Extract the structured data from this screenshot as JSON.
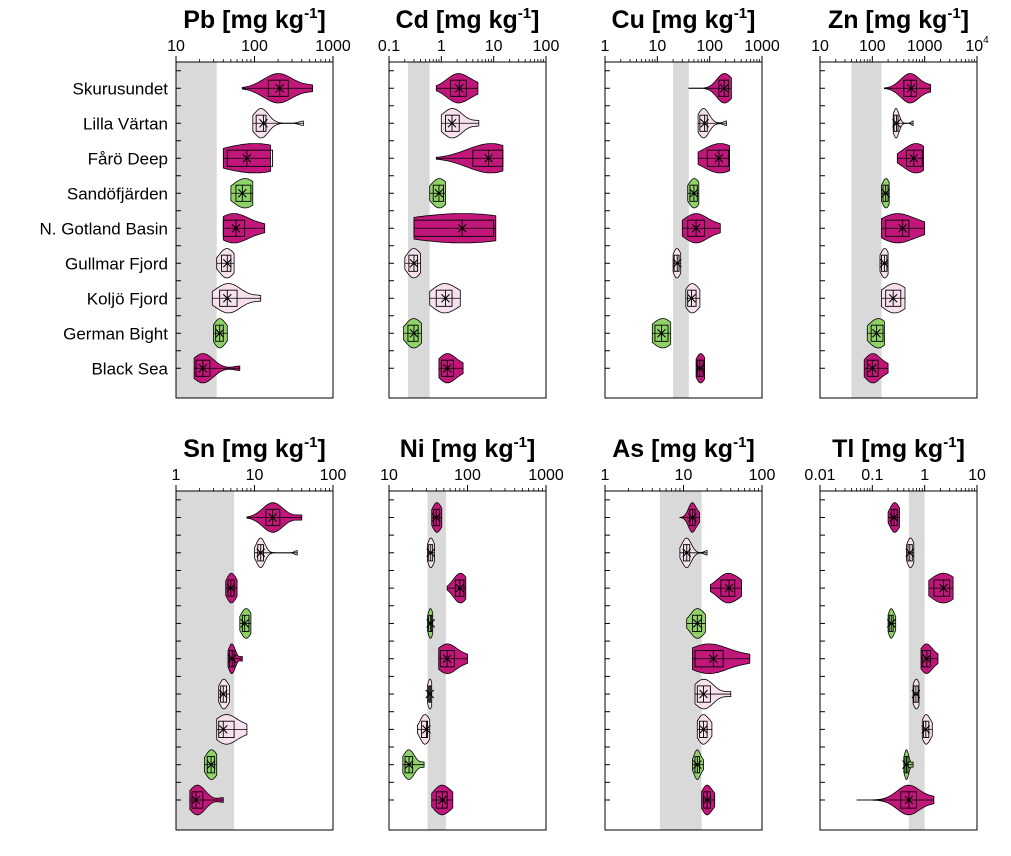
{
  "chart_data": {
    "type": "violin",
    "categories": [
      "Skurusundet",
      "Lilla Värtan",
      "Fårö Deep",
      "Sandöfjärden",
      "N. Gotland Basin",
      "Gullmar Fjord",
      "Koljö Fjord",
      "German Bight",
      "Black Sea"
    ],
    "colors": {
      "dark": "#c1177a",
      "light": "#f8e1ee",
      "green": "#90d16a",
      "background_band": "#d9d9d9",
      "outline": "#000000"
    },
    "groups": [
      "dark",
      "light",
      "dark",
      "green",
      "dark",
      "light",
      "light",
      "green",
      "dark"
    ],
    "panels": [
      {
        "id": "pb",
        "element": "Pb",
        "unit": "[mg kg",
        "unit_exp": "-1",
        "unit_close": "]",
        "scale": "log",
        "xlim": [
          10,
          1000
        ],
        "ticks": [
          {
            "label": "10"
          },
          {
            "label": "100"
          },
          {
            "label": "1000"
          }
        ],
        "tick_values": [
          10,
          100,
          1000
        ],
        "band": [
          10,
          33
        ],
        "violins": [
          [
            70,
            150,
            210,
            270,
            550
          ],
          [
            95,
            105,
            130,
            140,
            420
          ],
          [
            40,
            45,
            80,
            170,
            160
          ],
          [
            50,
            58,
            70,
            90,
            95
          ],
          [
            40,
            40,
            58,
            75,
            135
          ],
          [
            33,
            38,
            45,
            50,
            55
          ],
          [
            29,
            36,
            45,
            60,
            120
          ],
          [
            30,
            32,
            36,
            40,
            45
          ],
          [
            17,
            18,
            22,
            27,
            65
          ]
        ]
      },
      {
        "id": "cd",
        "element": "Cd",
        "unit": "[mg kg",
        "unit_exp": "-1",
        "unit_close": "]",
        "scale": "log",
        "xlim": [
          0.1,
          100
        ],
        "ticks": [
          {
            "label": "0.1"
          },
          {
            "label": "1"
          },
          {
            "label": "10"
          },
          {
            "label": "100"
          }
        ],
        "tick_values": [
          0.1,
          1,
          10,
          100
        ],
        "band": [
          0.23,
          0.6
        ],
        "violins": [
          [
            0.8,
            1.5,
            2.2,
            3,
            5
          ],
          [
            1.0,
            1.2,
            1.6,
            2.2,
            5.2
          ],
          [
            0.8,
            4,
            8,
            15,
            15
          ],
          [
            0.6,
            0.7,
            0.9,
            1.1,
            1.2
          ],
          [
            0.3,
            0.3,
            2.5,
            10,
            11
          ],
          [
            0.2,
            0.24,
            0.3,
            0.35,
            0.4
          ],
          [
            0.6,
            0.8,
            1.2,
            1.6,
            2.3
          ],
          [
            0.19,
            0.23,
            0.3,
            0.36,
            0.42
          ],
          [
            0.9,
            1.0,
            1.3,
            1.7,
            2.6
          ]
        ]
      },
      {
        "id": "cu",
        "element": "Cu",
        "unit": "[mg kg",
        "unit_exp": "-1",
        "unit_close": "]",
        "scale": "log",
        "xlim": [
          1,
          1000
        ],
        "ticks": [
          {
            "label": "1"
          },
          {
            "label": "10"
          },
          {
            "label": "100"
          },
          {
            "label": "1000"
          }
        ],
        "tick_values": [
          1,
          10,
          100,
          1000
        ],
        "band": [
          20,
          40
        ],
        "violins": [
          [
            40,
            150,
            190,
            230,
            260
          ],
          [
            60,
            65,
            80,
            90,
            210
          ],
          [
            60,
            90,
            150,
            230,
            240
          ],
          [
            38,
            42,
            50,
            58,
            62
          ],
          [
            30,
            38,
            55,
            80,
            160
          ],
          [
            20,
            21,
            24,
            26,
            28
          ],
          [
            35,
            38,
            45,
            55,
            65
          ],
          [
            8,
            9,
            12,
            16,
            18
          ],
          [
            55,
            58,
            65,
            75,
            80
          ]
        ]
      },
      {
        "id": "zn",
        "element": "Zn",
        "unit": "[mg kg",
        "unit_exp": "-1",
        "unit_close": "]",
        "scale": "log",
        "xlim": [
          10,
          10000
        ],
        "ticks": [
          {
            "label": "10"
          },
          {
            "label": "100"
          },
          {
            "label": "1000"
          },
          {
            "label": "10",
            "sup": "4"
          }
        ],
        "tick_values": [
          10,
          100,
          1000,
          10000
        ],
        "band": [
          40,
          150
        ],
        "violins": [
          [
            170,
            400,
            550,
            700,
            1300
          ],
          [
            250,
            260,
            290,
            310,
            600
          ],
          [
            300,
            450,
            620,
            900,
            950
          ],
          [
            150,
            160,
            180,
            200,
            210
          ],
          [
            150,
            180,
            380,
            500,
            1000
          ],
          [
            140,
            150,
            170,
            190,
            200
          ],
          [
            150,
            180,
            250,
            350,
            420
          ],
          [
            80,
            95,
            120,
            160,
            170
          ],
          [
            70,
            80,
            100,
            130,
            200
          ]
        ]
      },
      {
        "id": "sn",
        "element": "Sn",
        "unit": "[mg kg",
        "unit_exp": "-1",
        "unit_close": "]",
        "scale": "log",
        "xlim": [
          1,
          100
        ],
        "ticks": [
          {
            "label": "1"
          },
          {
            "label": "10"
          },
          {
            "label": "100"
          }
        ],
        "tick_values": [
          1,
          10,
          100
        ],
        "band": [
          1,
          5.5
        ],
        "violins": [
          [
            8,
            14,
            17,
            21,
            40
          ],
          [
            10,
            11,
            12,
            13,
            35
          ],
          [
            4.3,
            4.6,
            5.0,
            5.5,
            6
          ],
          [
            6.5,
            7,
            7.5,
            8.5,
            9
          ],
          [
            4.6,
            4.8,
            5.2,
            5.5,
            7
          ],
          [
            3.5,
            3.7,
            4.0,
            4.4,
            4.8
          ],
          [
            3.3,
            3.5,
            4.0,
            5.5,
            8
          ],
          [
            2.3,
            2.5,
            2.8,
            3.1,
            3.3
          ],
          [
            1.5,
            1.6,
            1.8,
            2.2,
            4
          ]
        ]
      },
      {
        "id": "ni",
        "element": "Ni",
        "unit": "[mg kg",
        "unit_exp": "-1",
        "unit_close": "]",
        "scale": "log",
        "xlim": [
          10,
          1000
        ],
        "ticks": [
          {
            "label": "10"
          },
          {
            "label": "100"
          },
          {
            "label": "1000"
          }
        ],
        "tick_values": [
          10,
          100,
          1000
        ],
        "band": [
          31,
          53
        ],
        "violins": [
          [
            35,
            37,
            40,
            44,
            47
          ],
          [
            31,
            32,
            34,
            36,
            38
          ],
          [
            55,
            70,
            80,
            90,
            95
          ],
          [
            31,
            32,
            34,
            35,
            36
          ],
          [
            43,
            45,
            55,
            68,
            100
          ],
          [
            31,
            32,
            33,
            34,
            35
          ],
          [
            23,
            26,
            30,
            31,
            33
          ],
          [
            15,
            16,
            18,
            20,
            28
          ],
          [
            35,
            40,
            48,
            55,
            65
          ]
        ]
      },
      {
        "id": "as",
        "element": "As",
        "unit": "[mg kg",
        "unit_exp": "-1",
        "unit_close": "]",
        "scale": "log",
        "xlim": [
          1,
          100
        ],
        "ticks": [
          {
            "label": "1"
          },
          {
            "label": "10"
          },
          {
            "label": "100"
          }
        ],
        "tick_values": [
          1,
          10,
          100
        ],
        "band": [
          5,
          17
        ],
        "violins": [
          [
            9,
            12,
            13,
            14,
            16
          ],
          [
            9,
            10,
            11,
            12,
            20
          ],
          [
            22,
            30,
            38,
            45,
            55
          ],
          [
            11,
            13,
            15,
            17,
            19
          ],
          [
            13,
            14,
            24,
            32,
            70
          ],
          [
            14,
            15,
            18,
            22,
            40
          ],
          [
            15,
            16,
            18,
            20,
            23
          ],
          [
            13,
            14,
            15,
            16,
            18
          ],
          [
            17,
            18,
            20,
            22,
            25
          ]
        ]
      },
      {
        "id": "tl",
        "element": "Tl",
        "unit": "[mg kg",
        "unit_exp": "-1",
        "unit_close": "]",
        "scale": "log",
        "xlim": [
          0.01,
          10
        ],
        "ticks": [
          {
            "label": "0.01"
          },
          {
            "label": "0.1"
          },
          {
            "label": "1"
          },
          {
            "label": "10"
          }
        ],
        "tick_values": [
          0.01,
          0.1,
          1,
          10
        ],
        "band": [
          0.5,
          1.0
        ],
        "violins": [
          [
            0.2,
            0.23,
            0.26,
            0.3,
            0.33
          ],
          [
            0.45,
            0.48,
            0.52,
            0.58,
            0.62
          ],
          [
            1.2,
            1.5,
            2.3,
            3,
            3.5
          ],
          [
            0.2,
            0.21,
            0.23,
            0.25,
            0.28
          ],
          [
            0.85,
            0.9,
            1.1,
            1.3,
            1.8
          ],
          [
            0.6,
            0.62,
            0.68,
            0.75,
            0.78
          ],
          [
            0.9,
            0.95,
            1.05,
            1.2,
            1.4
          ],
          [
            0.4,
            0.42,
            0.45,
            0.48,
            0.6
          ],
          [
            0.05,
            0.35,
            0.5,
            0.7,
            1.5
          ]
        ]
      }
    ]
  }
}
